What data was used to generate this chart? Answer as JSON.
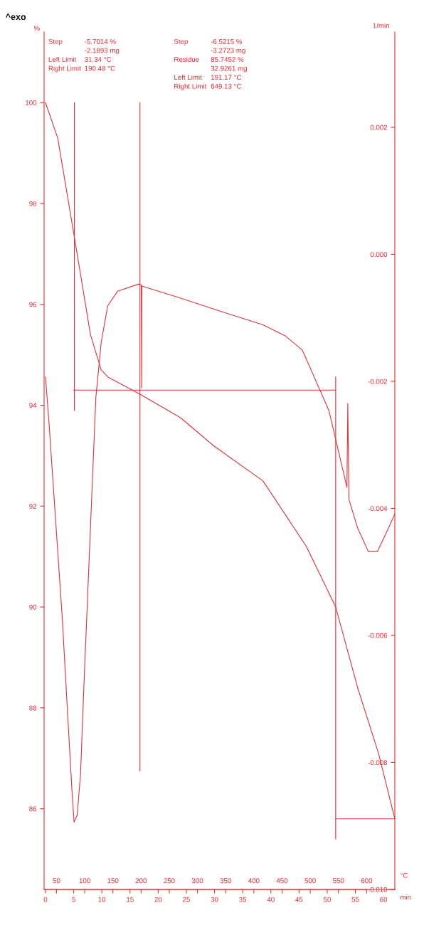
{
  "chart_data": {
    "type": "line",
    "xlabel": "min",
    "x2label": "°C",
    "ylabel": "%",
    "y2label": "1/min",
    "xlim": [
      -0.25,
      62.0
    ],
    "xticks": [
      0,
      5,
      10,
      15,
      20,
      25,
      30,
      35,
      40,
      45,
      50,
      55,
      60
    ],
    "x2lim": [
      28,
      650
    ],
    "x2ticks": [
      50,
      100,
      150,
      200,
      250,
      300,
      350,
      400,
      450,
      500,
      550,
      600
    ],
    "ylim": [
      84.4,
      101.4
    ],
    "yticks": [
      86,
      88,
      90,
      92,
      94,
      96,
      98,
      100
    ],
    "y2lim": [
      -0.01,
      0.0035
    ],
    "y2ticks": [
      {
        "value": -0.01,
        "label": "-0.010"
      },
      -0.008,
      -0.006,
      -0.004,
      -0.002,
      {
        "value": 0.0,
        "label": "0.000"
      },
      0.002
    ],
    "series": [
      {
        "color": "#e0343c",
        "x": [
          0,
          2.16,
          5.17,
          7.98,
          9.88,
          11.2,
          13.75,
          17.06,
          24.0,
          29.8,
          38.6,
          46.3,
          51.5,
          55.4,
          59.1,
          62.0
        ],
        "values": [
          100.0,
          99.3,
          97.3,
          95.4,
          94.7,
          94.55,
          94.4,
          94.2,
          93.75,
          93.2,
          92.5,
          91.2,
          90.0,
          88.4,
          87.1,
          85.8
        ]
      },
      {
        "axis": "y2",
        "color": "#e0343c",
        "x": [
          0,
          0.6,
          2.96,
          4.67,
          5.07,
          5.62,
          6.22,
          6.82,
          7.58,
          8.33,
          8.93,
          9.88,
          11.04,
          12.8,
          16.5,
          17.0,
          17.06,
          17.1,
          24.0,
          29.8,
          38.6,
          42.5,
          45.6,
          50.3,
          53.5,
          53.65,
          53.85,
          55.4,
          57.3,
          58.9,
          60.4,
          62.0
        ],
        "values": [
          -0.00193,
          -0.00263,
          -0.00571,
          -0.00841,
          -0.00894,
          -0.00883,
          -0.00818,
          -0.00678,
          -0.00515,
          -0.00355,
          -0.00226,
          -0.00139,
          -0.00081,
          -0.00058,
          -0.00047,
          -0.00048,
          -0.0021,
          -0.0005,
          -0.00069,
          -0.00086,
          -0.00111,
          -0.00128,
          -0.00151,
          -0.00246,
          -0.00367,
          -0.00235,
          -0.00386,
          -0.00431,
          -0.00468,
          -0.00468,
          -0.0044,
          -0.00409
        ]
      },
      {
        "color": "#e0343c",
        "x": [
          5.12,
          5.12
        ],
        "values": [
          100.0,
          93.9
        ]
      },
      {
        "color": "#e0343c",
        "x": [
          4.97,
          51.5
        ],
        "values": [
          94.3,
          94.3
        ]
      },
      {
        "color": "#e0343c",
        "x": [
          16.76,
          16.76
        ],
        "values": [
          100.0,
          86.75
        ]
      },
      {
        "color": "#e0343c",
        "x": [
          51.5,
          51.5
        ],
        "values": [
          94.56,
          85.4
        ]
      },
      {
        "color": "#e0343c",
        "x": [
          51.5,
          62.0
        ],
        "values": [
          85.8,
          85.8
        ]
      }
    ],
    "annotations": [
      "Step\n\nLeft Limit\nRight Limit",
      "-5.7014 %\n-2.1893 mg\n31.34 °C\n190.48 °C",
      "Step\n\nResidue\n\nLeft Limit\nRight Limit",
      "-6.5215 %\n-3.2723 mg\n85.7452 %\n32.9261 mg\n191.17 °C\n649.13 °C",
      "^exo"
    ]
  }
}
